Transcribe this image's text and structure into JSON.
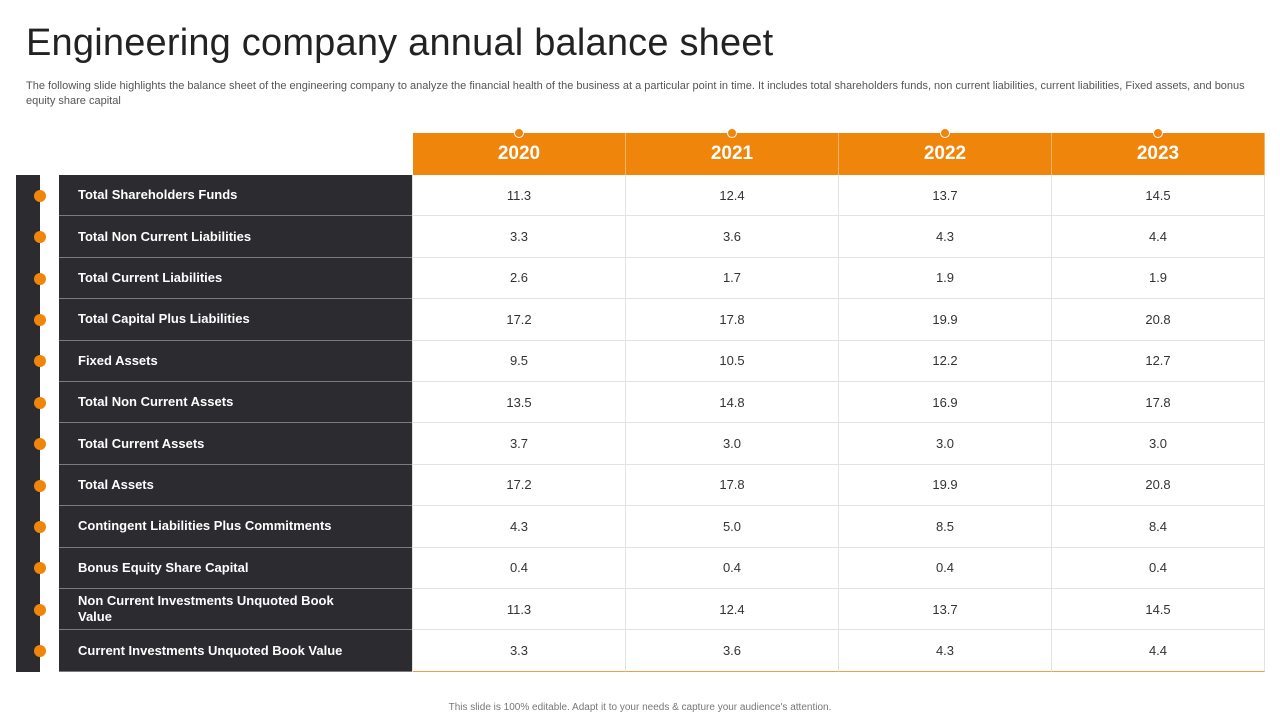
{
  "title": "Engineering company annual balance sheet",
  "subtitle": "The following slide highlights the balance sheet of the engineering company to analyze the financial health of the business at a particular point in time. It includes total shareholders funds, non current liabilities, current liabilities, Fixed assets, and bonus equity share capital",
  "colors": {
    "accent": "#f0850c",
    "dark": "#2b2b30"
  },
  "table": {
    "years": [
      "2020",
      "2021",
      "2022",
      "2023"
    ],
    "rows": [
      {
        "label": "Total Shareholders Funds",
        "values": [
          "11.3",
          "12.4",
          "13.7",
          "14.5"
        ]
      },
      {
        "label": "Total Non Current Liabilities",
        "values": [
          "3.3",
          "3.6",
          "4.3",
          "4.4"
        ]
      },
      {
        "label": "Total Current Liabilities",
        "values": [
          "2.6",
          "1.7",
          "1.9",
          "1.9"
        ]
      },
      {
        "label": "Total Capital Plus Liabilities",
        "values": [
          "17.2",
          "17.8",
          "19.9",
          "20.8"
        ]
      },
      {
        "label": "Fixed Assets",
        "values": [
          "9.5",
          "10.5",
          "12.2",
          "12.7"
        ]
      },
      {
        "label": "Total Non Current Assets",
        "values": [
          "13.5",
          "14.8",
          "16.9",
          "17.8"
        ]
      },
      {
        "label": "Total Current Assets",
        "values": [
          "3.7",
          "3.0",
          "3.0",
          "3.0"
        ]
      },
      {
        "label": "Total Assets",
        "values": [
          "17.2",
          "17.8",
          "19.9",
          "20.8"
        ]
      },
      {
        "label": "Contingent Liabilities Plus Commitments",
        "values": [
          "4.3",
          "5.0",
          "8.5",
          "8.4"
        ]
      },
      {
        "label": "Bonus Equity Share Capital",
        "values": [
          "0.4",
          "0.4",
          "0.4",
          "0.4"
        ]
      },
      {
        "label": "Non Current Investments Unquoted Book Value",
        "values": [
          "11.3",
          "12.4",
          "13.7",
          "14.5"
        ]
      },
      {
        "label": "Current Investments Unquoted Book Value",
        "values": [
          "3.3",
          "3.6",
          "4.3",
          "4.4"
        ]
      }
    ]
  },
  "footer": "This slide is 100% editable.  Adapt it to your needs & capture your audience's attention."
}
